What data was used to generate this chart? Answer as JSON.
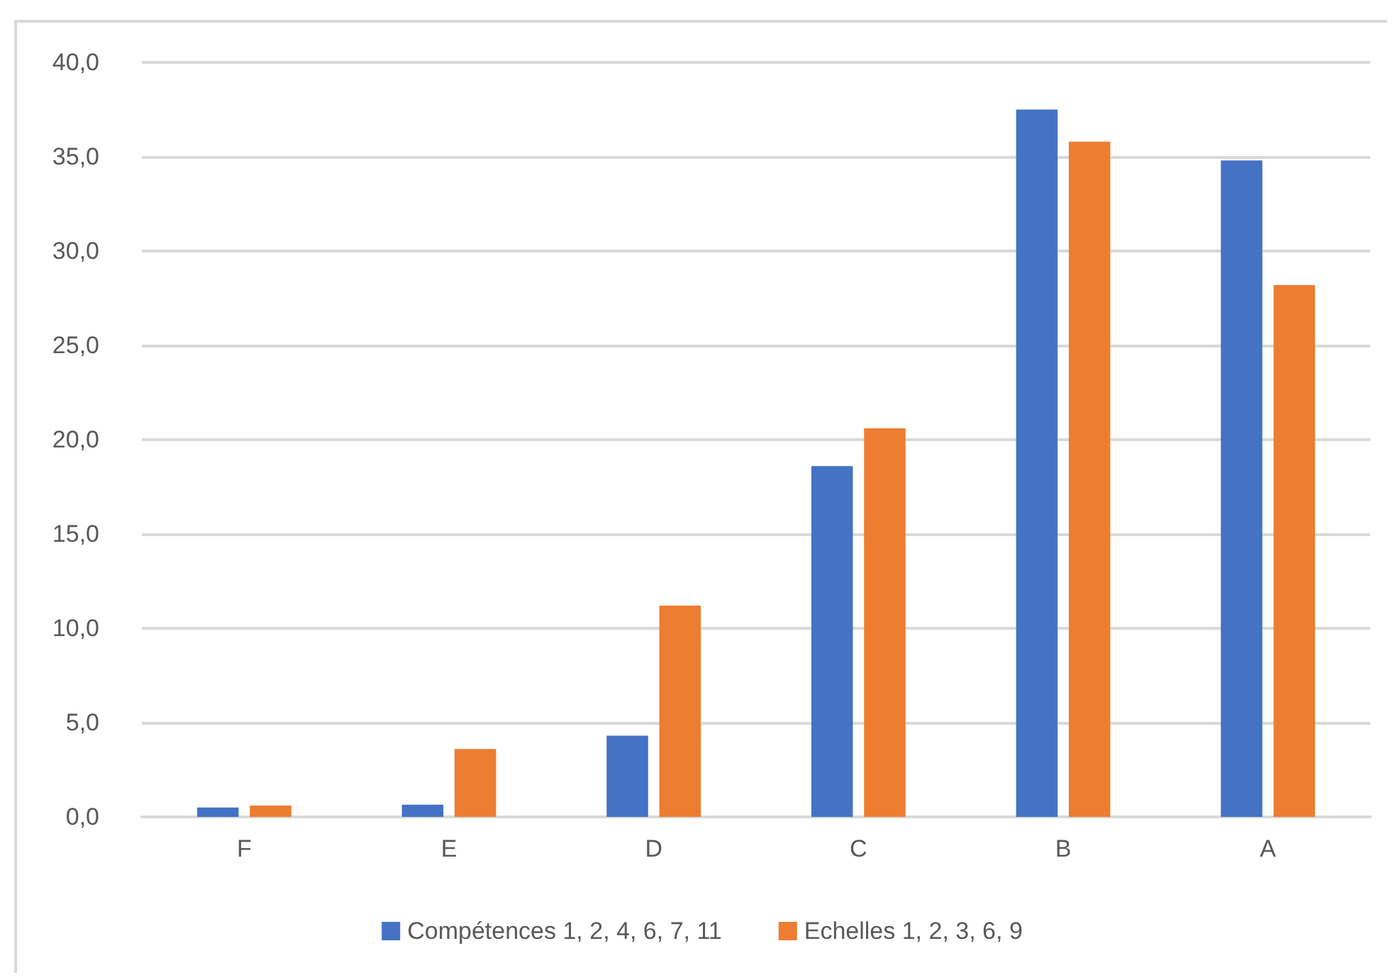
{
  "chart_data": {
    "type": "bar",
    "categories": [
      "F",
      "E",
      "D",
      "C",
      "B",
      "A"
    ],
    "series": [
      {
        "name": "Compétences 1, 2, 4, 6, 7, 11",
        "color": "#4472c4",
        "values": [
          0.5,
          0.65,
          4.3,
          18.6,
          37.5,
          34.8
        ]
      },
      {
        "name": "Echelles 1, 2, 3, 6, 9",
        "color": "#ed7d31",
        "values": [
          0.6,
          3.6,
          11.2,
          20.6,
          35.8,
          28.2
        ]
      }
    ],
    "ylim": [
      0,
      40
    ],
    "yticks": [
      {
        "value": 0,
        "label": "0,0"
      },
      {
        "value": 5,
        "label": "5,0"
      },
      {
        "value": 10,
        "label": "10,0"
      },
      {
        "value": 15,
        "label": "15,0"
      },
      {
        "value": 20,
        "label": "20,0"
      },
      {
        "value": 25,
        "label": "25,0"
      },
      {
        "value": 30,
        "label": "30,0"
      },
      {
        "value": 35,
        "label": "35,0"
      },
      {
        "value": 40,
        "label": "40,0"
      }
    ],
    "grid": "y",
    "legend": "bottom"
  }
}
